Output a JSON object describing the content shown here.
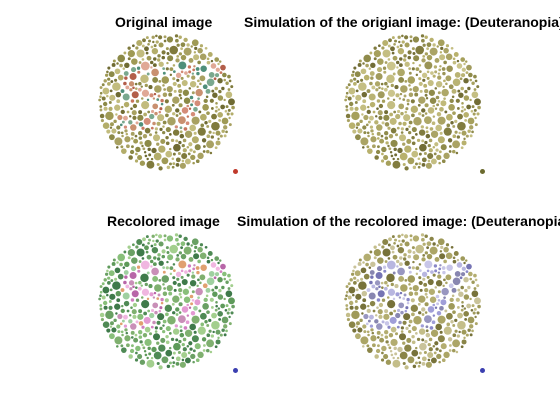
{
  "panels": [
    {
      "title": "Original image",
      "palette": {
        "background": [
          "#9f9a55",
          "#8c8a48",
          "#b3ad6a",
          "#7f7a3c",
          "#c2bc7e",
          "#a8a162",
          "#6f6b33"
        ],
        "figure": [
          "#c8765e",
          "#d48c78",
          "#b35e4a",
          "#e0a896",
          "#c99070",
          "#4f8f7a",
          "#7aa88e"
        ]
      },
      "swatch_color": "#c0392b"
    },
    {
      "title": "Simulation of the origianl image: (Deuteranopia)",
      "palette": {
        "background": [
          "#a6a05c",
          "#8f8b4b",
          "#b8b16d",
          "#817c3f",
          "#c4be82",
          "#aaa364",
          "#726d36"
        ],
        "figure": [
          "#b5ae6e",
          "#c0b97a",
          "#a19b5d",
          "#cbc58c",
          "#aea868",
          "#9a9456",
          "#b9b374"
        ]
      },
      "swatch_color": "#6b6a2e"
    },
    {
      "title": "Recolored image",
      "palette": {
        "background": [
          "#6aa064",
          "#88bf7a",
          "#4f8a55",
          "#a3cf8e",
          "#3f7a4a",
          "#7fb06f",
          "#5e9a5a"
        ],
        "figure": [
          "#d07fc0",
          "#e39ad2",
          "#b866a8",
          "#f0b6e0",
          "#c98fb8",
          "#e0a070",
          "#9fd0a0"
        ]
      },
      "swatch_color": "#3b3fb0"
    },
    {
      "title": "Simulation of the recolored image: (Deuteranopia)",
      "palette": {
        "background": [
          "#9f9a5a",
          "#b3ad70",
          "#8a8548",
          "#c4be8a",
          "#77723a",
          "#aba566",
          "#c9c39a"
        ],
        "figure": [
          "#8a88c8",
          "#a09ed8",
          "#7674b4",
          "#b8b6e0",
          "#9896c0",
          "#c8c6e8",
          "#8886b0"
        ]
      },
      "swatch_color": "#3b3fb0"
    }
  ],
  "plate_text": "57"
}
